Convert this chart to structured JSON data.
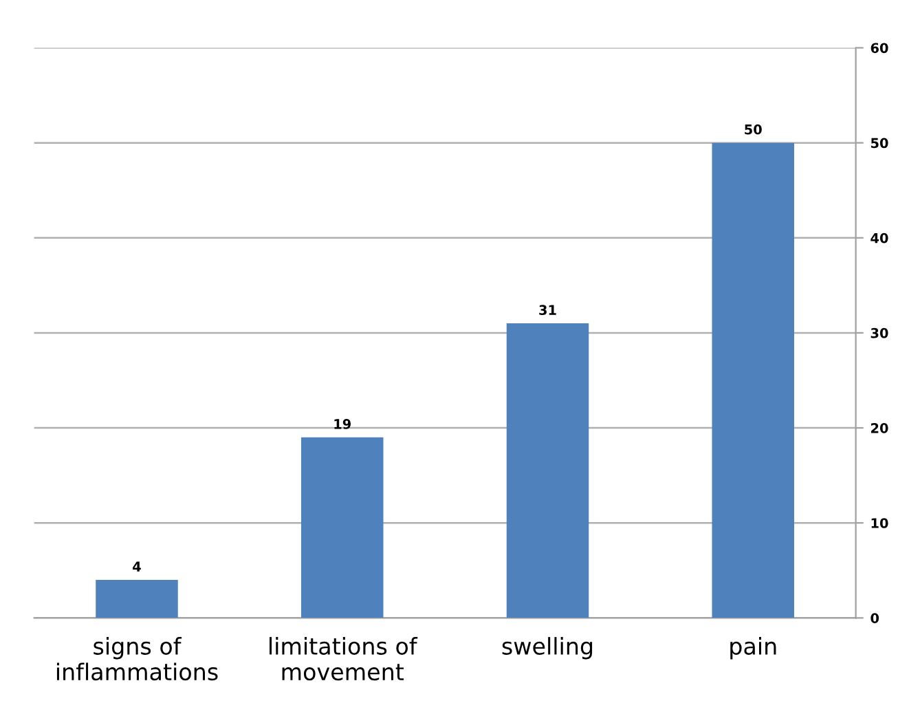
{
  "chart_data": {
    "type": "bar",
    "categories": [
      "signs of\ninflammations",
      "limitations of\nmovement",
      "swelling",
      "pain"
    ],
    "values": [
      4,
      19,
      31,
      50
    ],
    "color": "#4f81bd",
    "ylim": [
      0,
      60
    ],
    "yticks": [
      0,
      10,
      20,
      30,
      40,
      50,
      60
    ],
    "grid": "y",
    "data_labels": true
  }
}
